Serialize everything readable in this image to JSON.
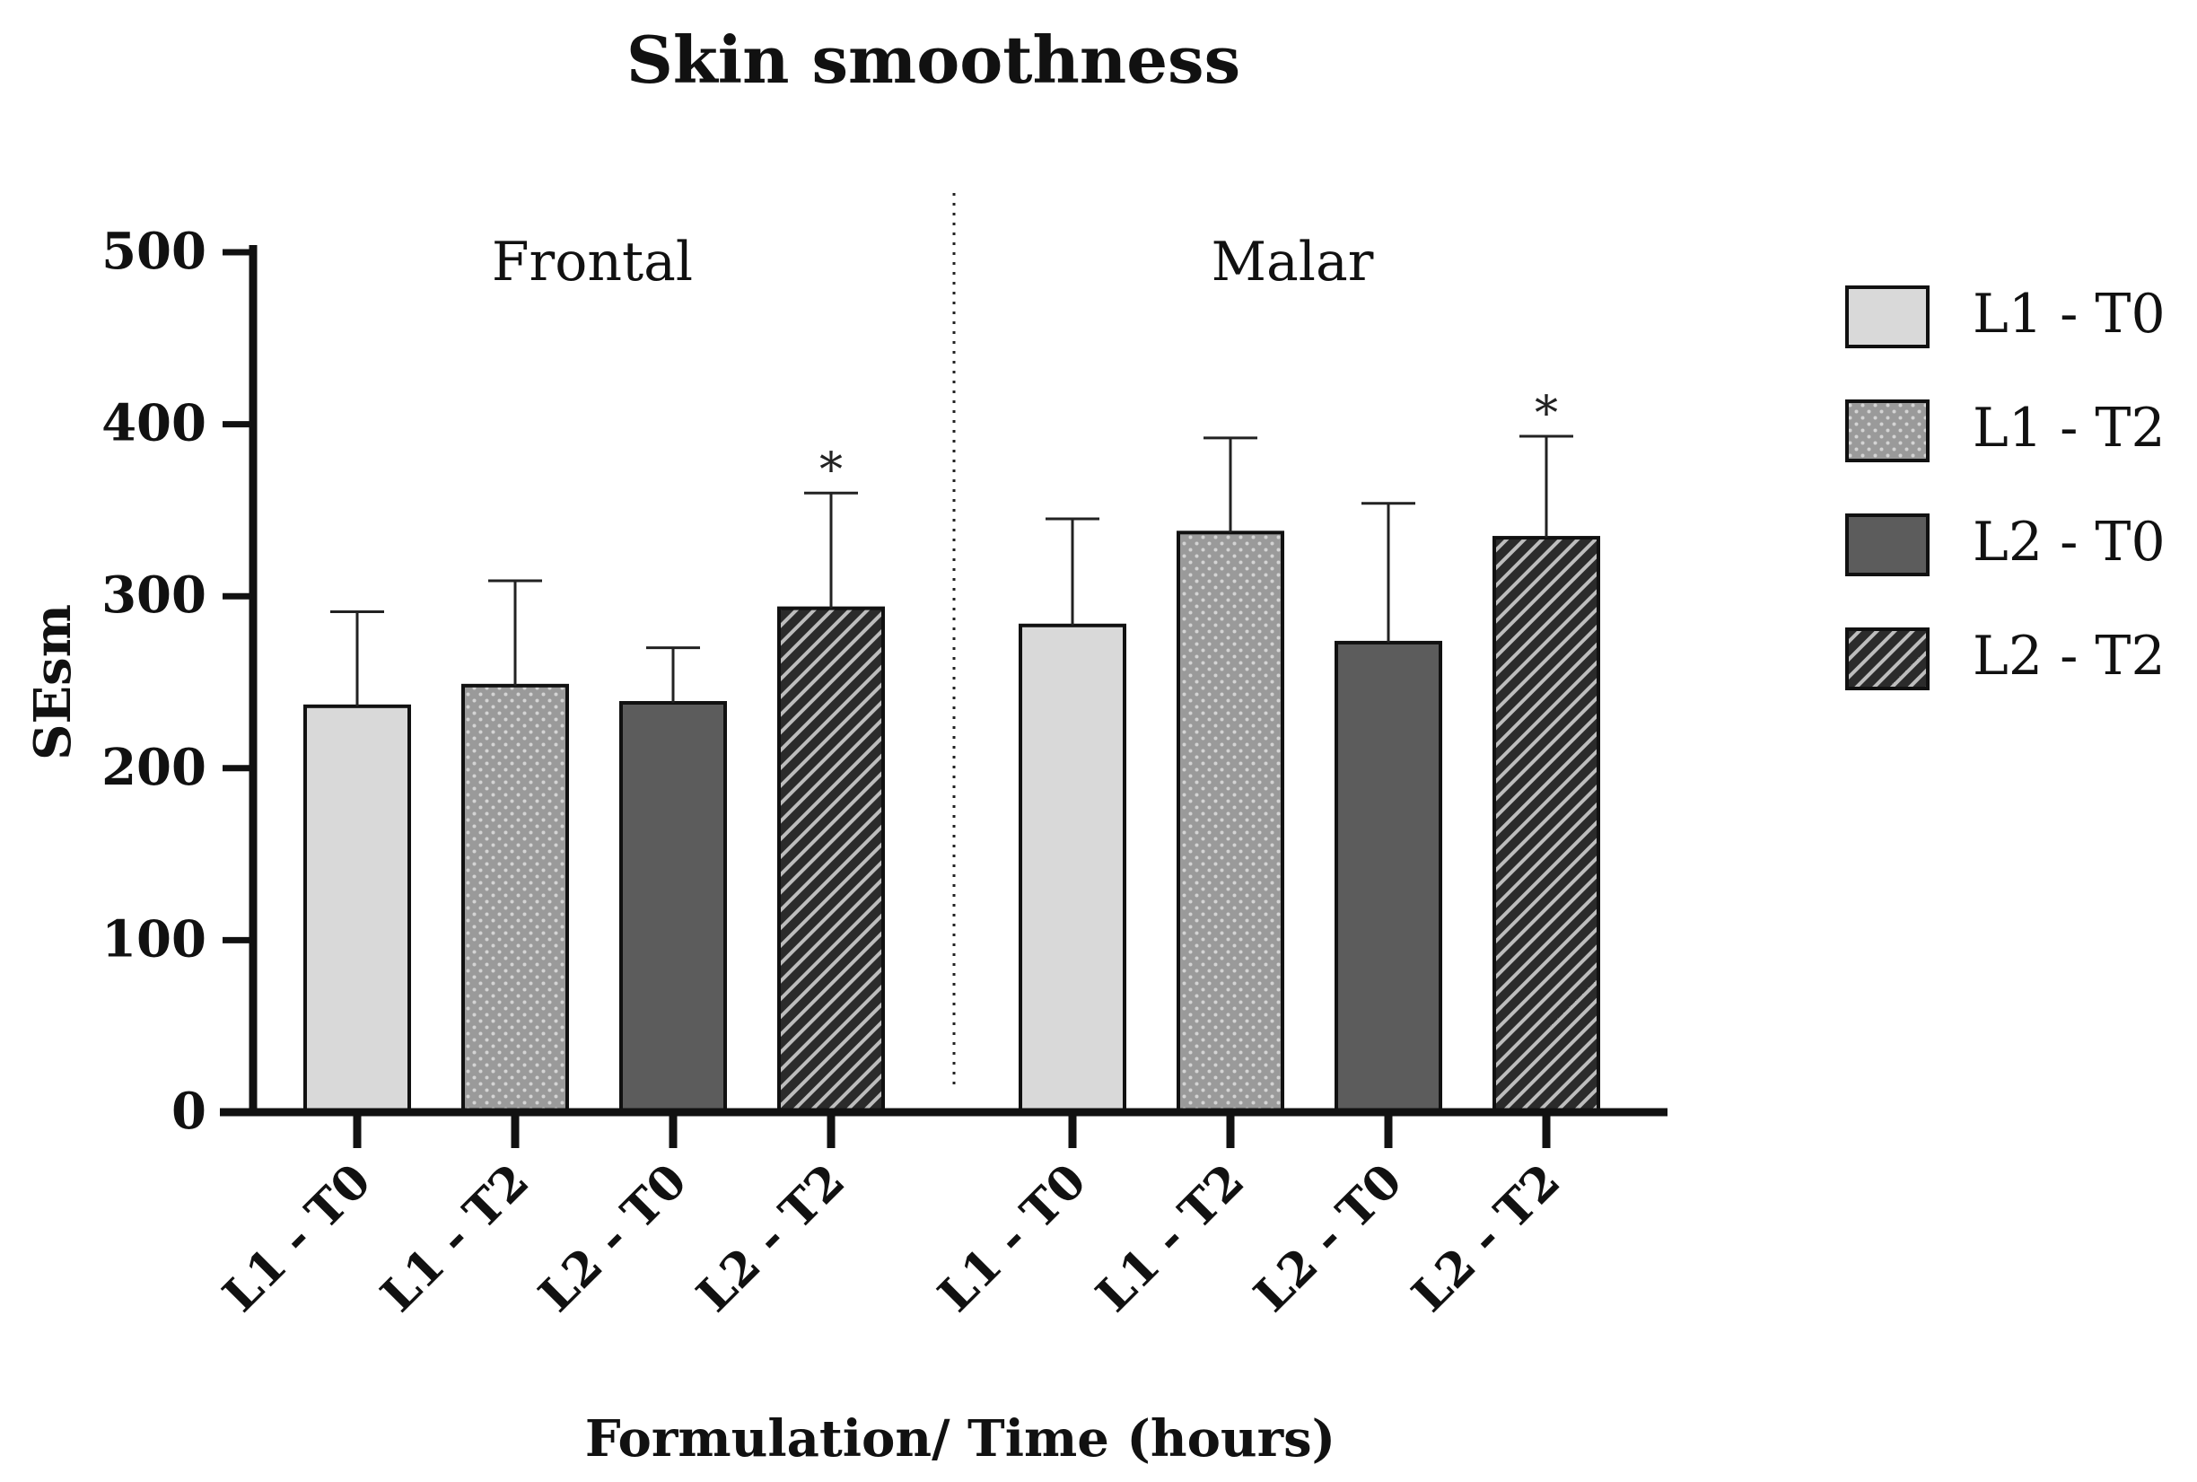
{
  "chart_data": {
    "type": "bar",
    "title": "Skin smoothness",
    "xlabel": "Formulation/ Time (hours)",
    "ylabel": "SEsm",
    "ylim": [
      0,
      500
    ],
    "yticks": [
      0,
      100,
      200,
      300,
      400,
      500
    ],
    "groups": [
      {
        "label": "Frontal",
        "categories": [
          "L1 - T0",
          "L1 - T2",
          "L2 - T0",
          "L2 - T2"
        ],
        "values": [
          236,
          248,
          238,
          293
        ],
        "errors": [
          55,
          61,
          32,
          67
        ],
        "significance": [
          "",
          "",
          "",
          "*"
        ]
      },
      {
        "label": "Malar",
        "categories": [
          "L1 - T0",
          "L1 - T2",
          "L2 - T0",
          "L2 - T2"
        ],
        "values": [
          283,
          337,
          273,
          334
        ],
        "errors": [
          62,
          55,
          81,
          59
        ],
        "significance": [
          "",
          "",
          "",
          "*"
        ]
      }
    ],
    "legend": {
      "placement": "right",
      "entries": [
        {
          "label": "L1 - T0",
          "fill": "#d9d9d9",
          "pattern": "solid"
        },
        {
          "label": "L1 - T2",
          "fill": "#9a9a9a",
          "pattern": "dots"
        },
        {
          "label": "L2 - T0",
          "fill": "#5c5c5c",
          "pattern": "solid"
        },
        {
          "label": "L2 - T2",
          "fill": "#2b2b2b",
          "pattern": "hatch"
        }
      ]
    }
  }
}
